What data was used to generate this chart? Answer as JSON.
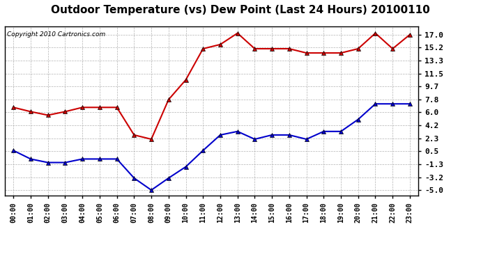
{
  "title": "Outdoor Temperature (vs) Dew Point (Last 24 Hours) 20100110",
  "copyright": "Copyright 2010 Cartronics.com",
  "hours": [
    "00:00",
    "01:00",
    "02:00",
    "03:00",
    "04:00",
    "05:00",
    "06:00",
    "07:00",
    "08:00",
    "09:00",
    "10:00",
    "11:00",
    "12:00",
    "13:00",
    "14:00",
    "15:00",
    "16:00",
    "17:00",
    "18:00",
    "19:00",
    "20:00",
    "21:00",
    "22:00",
    "23:00"
  ],
  "temp": [
    6.7,
    6.1,
    5.6,
    6.1,
    6.7,
    6.7,
    6.7,
    2.8,
    2.2,
    7.8,
    10.6,
    15.0,
    15.6,
    17.2,
    15.0,
    15.0,
    15.0,
    14.4,
    14.4,
    14.4,
    15.0,
    17.2,
    15.0,
    17.0
  ],
  "dewpoint": [
    0.6,
    -0.6,
    -1.1,
    -1.1,
    -0.6,
    -0.6,
    -0.6,
    -3.3,
    -5.0,
    -3.3,
    -1.7,
    0.6,
    2.8,
    3.3,
    2.2,
    2.8,
    2.8,
    2.2,
    3.3,
    3.3,
    5.0,
    7.2,
    7.2,
    7.2
  ],
  "temp_color": "#cc0000",
  "dewpoint_color": "#0000cc",
  "yticks": [
    17.0,
    15.2,
    13.3,
    11.5,
    9.7,
    7.8,
    6.0,
    4.2,
    2.3,
    0.5,
    -1.3,
    -3.2,
    -5.0
  ],
  "ylim": [
    -5.8,
    18.2
  ],
  "background_color": "#ffffff",
  "grid_color": "#aaaaaa",
  "title_fontsize": 11,
  "copyright_fontsize": 6.5
}
